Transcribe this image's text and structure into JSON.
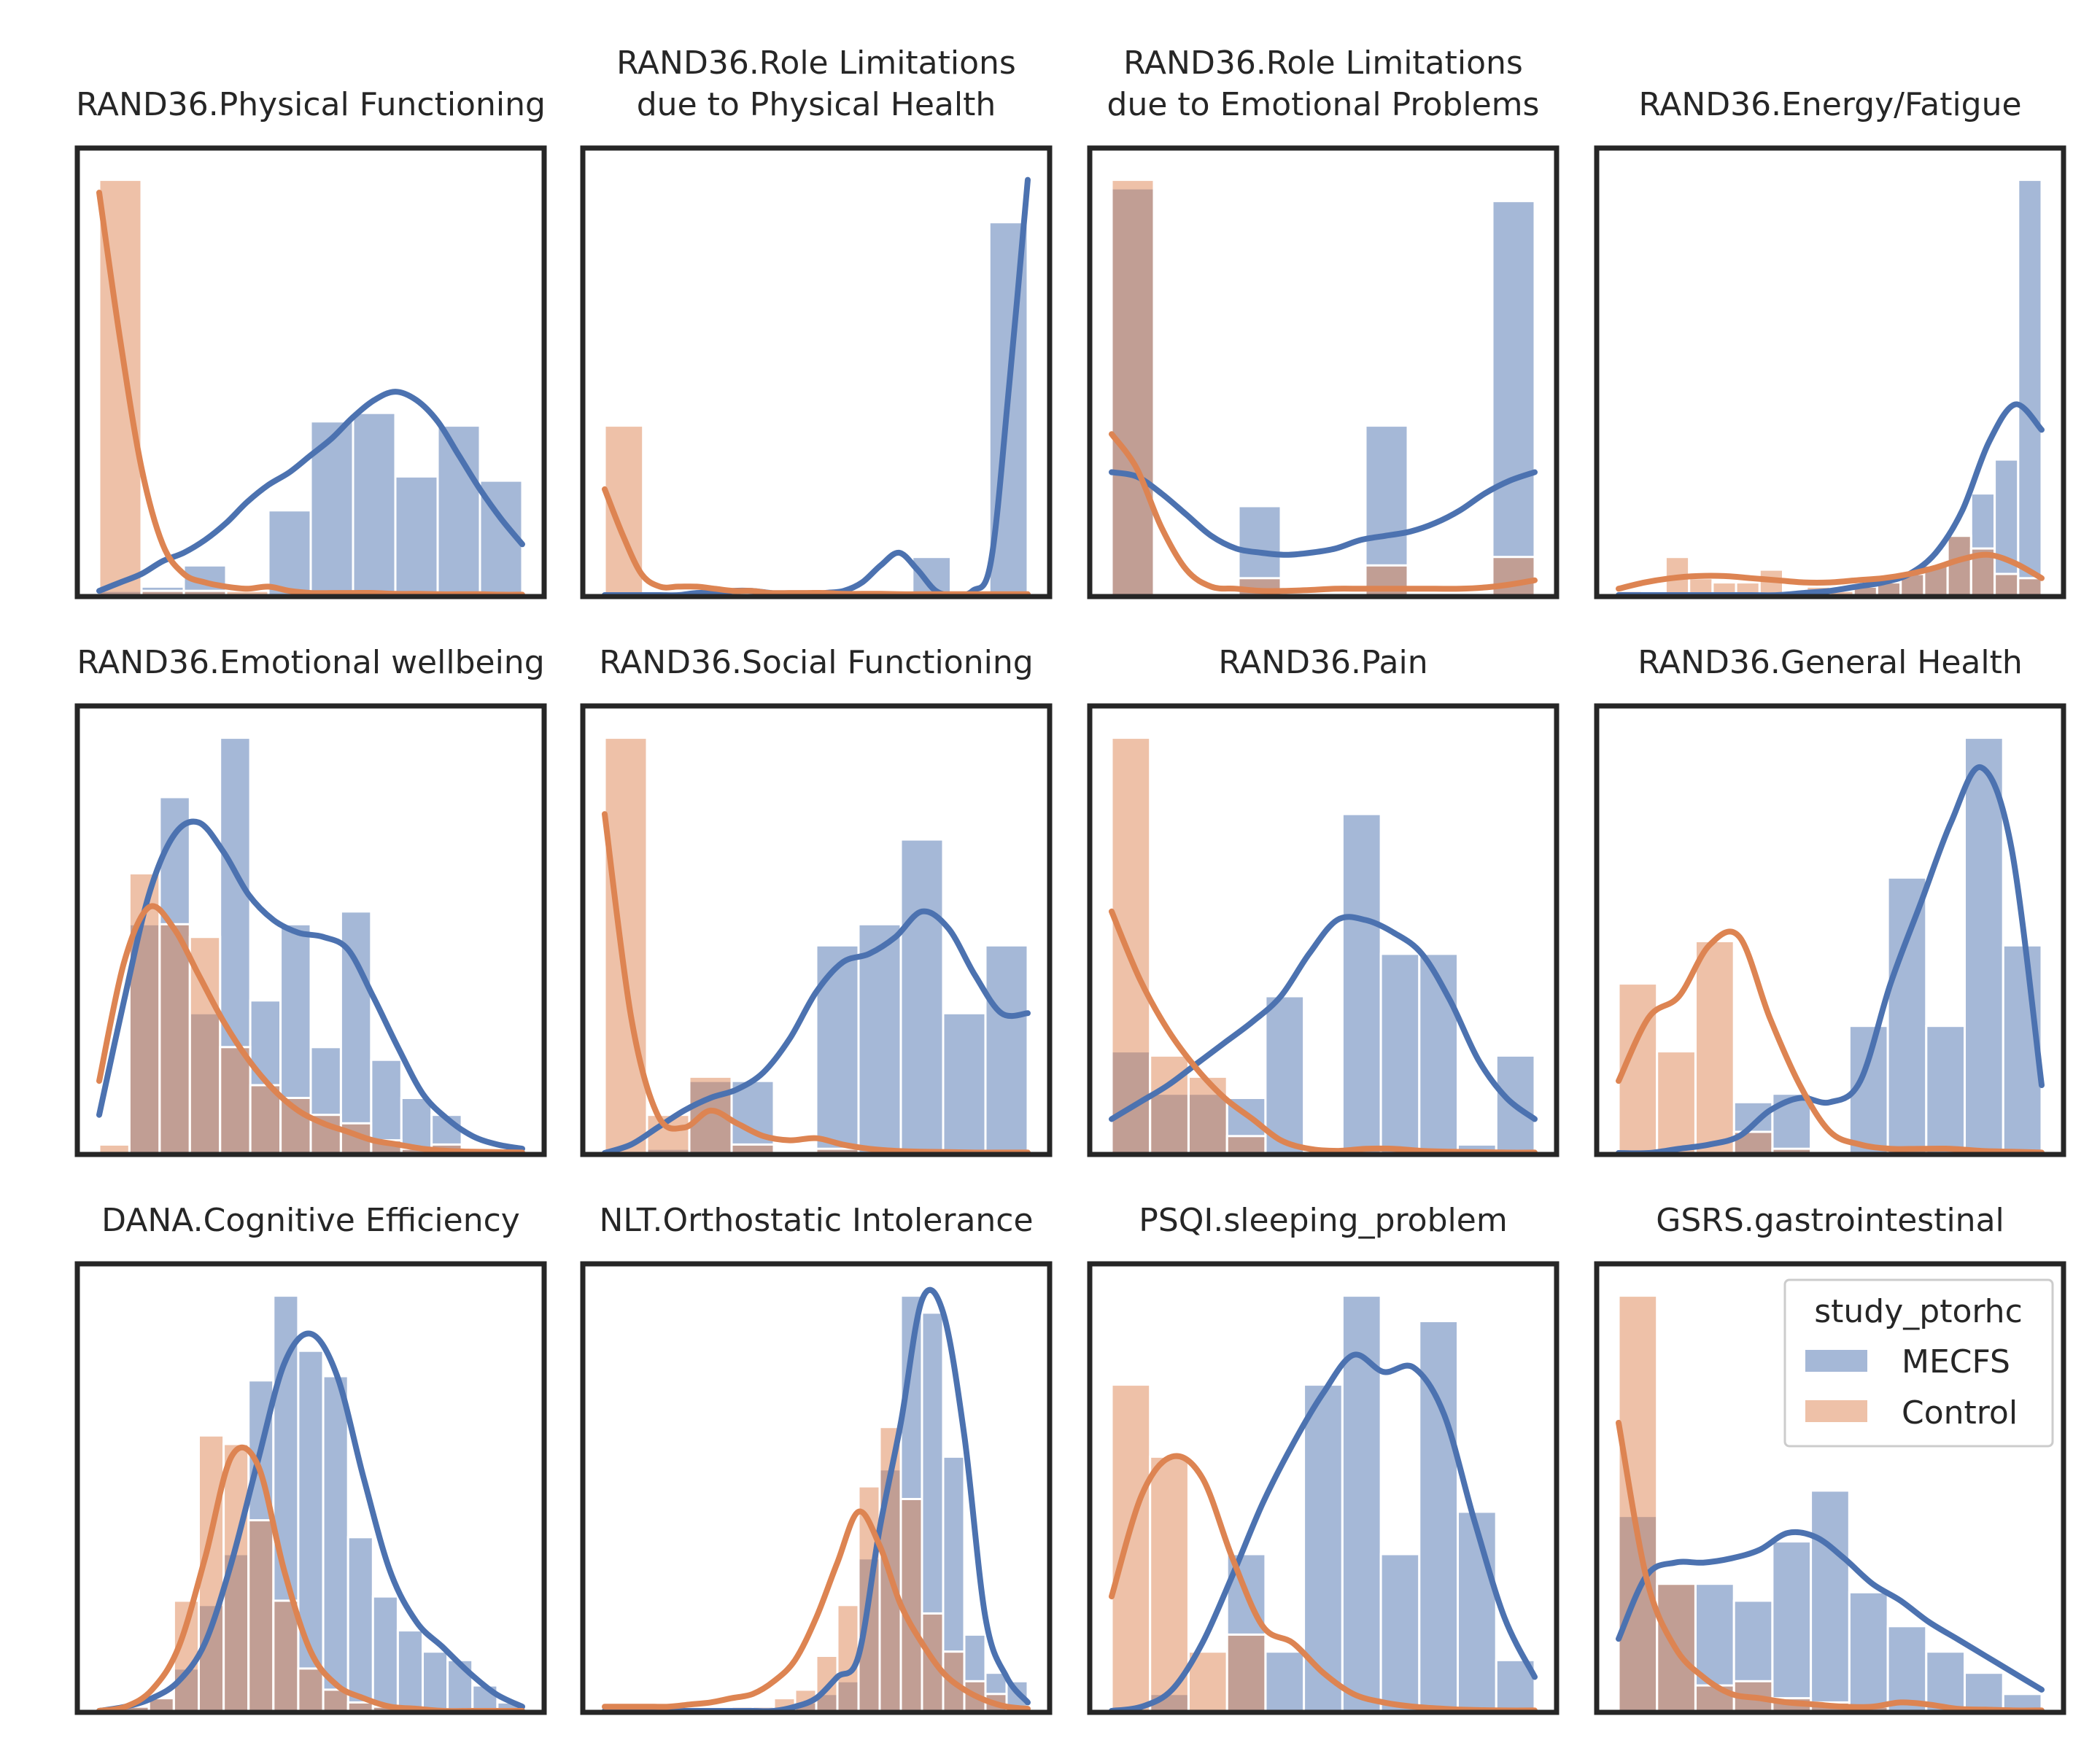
{
  "figure": {
    "legend": {
      "title": "study_ptorhc",
      "placement": "top-right of last panel",
      "entries": [
        {
          "label": "MECFS",
          "color": "#4c72b0"
        },
        {
          "label": "Control",
          "color": "#dd8452"
        }
      ]
    }
  },
  "chart_data": [
    {
      "type": "bar",
      "title_lines": [
        "RAND36.Physical Functioning"
      ],
      "hist": {
        "MECFS": [
          0.01,
          0.02,
          0.07,
          0.0,
          0.2,
          0.41,
          0.43,
          0.28,
          0.4,
          0.27
        ],
        "Control": [
          0.98,
          0.01,
          0.01,
          0.01,
          0.0,
          0.0,
          0.0,
          0.0,
          0.0,
          0.0
        ]
      },
      "kde": {
        "MECFS": [
          0.01,
          0.03,
          0.05,
          0.08,
          0.1,
          0.13,
          0.17,
          0.22,
          0.26,
          0.29,
          0.33,
          0.37,
          0.42,
          0.46,
          0.48,
          0.46,
          0.41,
          0.33,
          0.25,
          0.18,
          0.12
        ],
        "Control": [
          0.95,
          0.6,
          0.3,
          0.12,
          0.05,
          0.03,
          0.02,
          0.015,
          0.02,
          0.01,
          0.005,
          0.005,
          0.005,
          0.005,
          0.003,
          0.003,
          0.002,
          0.002,
          0.002,
          0.001,
          0.001
        ]
      }
    },
    {
      "type": "bar",
      "title_lines": [
        "RAND36.Role Limitations",
        "due to Physical Health"
      ],
      "hist": {
        "MECFS": [
          0.0,
          0.0,
          0.0,
          0.0,
          0.0,
          0.0,
          0.0,
          0.0,
          0.09,
          0.0,
          0.88
        ],
        "Control": [
          0.4,
          0.0,
          0.01,
          0.0,
          0.0,
          0.0,
          0.0,
          0.0,
          0.0,
          0.0,
          0.0
        ]
      },
      "kde": {
        "MECFS": [
          0.0,
          0.0,
          0.0,
          0.0,
          0.0,
          0.005,
          0.005,
          0.01,
          0.01,
          0.005,
          0.0,
          0.0,
          0.005,
          0.01,
          0.03,
          0.07,
          0.1,
          0.06,
          0.01,
          0.0,
          0.01,
          0.08,
          0.5,
          0.98
        ],
        "Control": [
          0.25,
          0.14,
          0.05,
          0.02,
          0.02,
          0.02,
          0.015,
          0.01,
          0.01,
          0.005,
          0.005,
          0.005,
          0.005,
          0.003,
          0.003,
          0.003,
          0.002,
          0.002,
          0.002,
          0.002,
          0.002,
          0.002,
          0.002,
          0.002
        ]
      }
    },
    {
      "type": "bar",
      "title_lines": [
        "RAND36.Role Limitations",
        "due to Emotional Problems"
      ],
      "hist": {
        "MECFS": [
          0.96,
          0.0,
          0.0,
          0.21,
          0.0,
          0.0,
          0.4,
          0.0,
          0.0,
          0.93
        ],
        "Control": [
          0.98,
          0.0,
          0.0,
          0.04,
          0.0,
          0.0,
          0.07,
          0.0,
          0.0,
          0.09
        ]
      },
      "kde": {
        "MECFS": [
          0.29,
          0.28,
          0.24,
          0.19,
          0.14,
          0.11,
          0.1,
          0.095,
          0.1,
          0.11,
          0.13,
          0.14,
          0.15,
          0.17,
          0.2,
          0.24,
          0.27,
          0.29
        ],
        "Control": [
          0.38,
          0.3,
          0.16,
          0.06,
          0.02,
          0.015,
          0.01,
          0.01,
          0.012,
          0.015,
          0.015,
          0.015,
          0.015,
          0.015,
          0.015,
          0.018,
          0.025,
          0.035
        ]
      }
    },
    {
      "type": "bar",
      "title_lines": [
        "RAND36.Energy/Fatigue"
      ],
      "hist": {
        "MECFS": [
          0.0,
          0.0,
          0.0,
          0.0,
          0.0,
          0.0,
          0.0,
          0.0,
          0.0,
          0.0,
          0.02,
          0.04,
          0.05,
          0.07,
          0.14,
          0.24,
          0.32,
          0.98
        ],
        "Control": [
          0.01,
          0.0,
          0.09,
          0.04,
          0.03,
          0.03,
          0.06,
          0.01,
          0.02,
          0.01,
          0.02,
          0.03,
          0.05,
          0.07,
          0.14,
          0.11,
          0.05,
          0.04
        ]
      },
      "kde": {
        "MECFS": [
          0.0,
          0.0,
          0.0,
          0.0,
          0.0,
          0.0,
          0.0,
          0.005,
          0.01,
          0.02,
          0.03,
          0.05,
          0.1,
          0.2,
          0.36,
          0.45,
          0.39
        ],
        "Control": [
          0.015,
          0.03,
          0.04,
          0.045,
          0.045,
          0.04,
          0.035,
          0.03,
          0.03,
          0.035,
          0.04,
          0.05,
          0.065,
          0.085,
          0.095,
          0.075,
          0.04
        ]
      }
    },
    {
      "type": "bar",
      "title_lines": [
        "RAND36.Emotional wellbeing"
      ],
      "hist": {
        "MECFS": [
          0.0,
          0.54,
          0.84,
          0.33,
          0.98,
          0.36,
          0.54,
          0.25,
          0.57,
          0.22,
          0.13,
          0.09,
          0.01,
          0.01
        ],
        "Control": [
          0.02,
          0.66,
          0.54,
          0.51,
          0.25,
          0.16,
          0.13,
          0.09,
          0.07,
          0.03,
          0.01,
          0.02,
          0.01,
          0.0
        ]
      },
      "kde": {
        "MECFS": [
          0.09,
          0.36,
          0.61,
          0.75,
          0.78,
          0.71,
          0.61,
          0.55,
          0.52,
          0.51,
          0.48,
          0.37,
          0.25,
          0.14,
          0.08,
          0.04,
          0.02,
          0.01
        ],
        "Control": [
          0.17,
          0.45,
          0.58,
          0.53,
          0.42,
          0.31,
          0.22,
          0.15,
          0.1,
          0.07,
          0.05,
          0.03,
          0.02,
          0.01,
          0.005,
          0.003,
          0.002,
          0.001
        ]
      }
    },
    {
      "type": "bar",
      "title_lines": [
        "RAND36.Social Functioning"
      ],
      "hist": {
        "MECFS": [
          0.0,
          0.01,
          0.17,
          0.17,
          0.0,
          0.49,
          0.54,
          0.74,
          0.33,
          0.49
        ],
        "Control": [
          0.98,
          0.09,
          0.18,
          0.02,
          0.0,
          0.01,
          0.0,
          0.0,
          0.0,
          0.0
        ]
      },
      "kde": {
        "MECFS": [
          0.0,
          0.02,
          0.06,
          0.1,
          0.13,
          0.15,
          0.19,
          0.27,
          0.38,
          0.45,
          0.47,
          0.51,
          0.57,
          0.53,
          0.42,
          0.33,
          0.33
        ],
        "Control": [
          0.8,
          0.32,
          0.09,
          0.06,
          0.1,
          0.07,
          0.04,
          0.03,
          0.035,
          0.02,
          0.01,
          0.005,
          0.003,
          0.002,
          0.001,
          0.001,
          0.001
        ]
      }
    },
    {
      "type": "bar",
      "title_lines": [
        "RAND36.Pain"
      ],
      "hist": {
        "MECFS": [
          0.24,
          0.14,
          0.14,
          0.13,
          0.37,
          0.0,
          0.8,
          0.47,
          0.47,
          0.02,
          0.23
        ],
        "Control": [
          0.98,
          0.23,
          0.18,
          0.04,
          0.0,
          0.0,
          0.0,
          0.0,
          0.0,
          0.0,
          0.0
        ]
      },
      "kde": {
        "MECFS": [
          0.08,
          0.12,
          0.16,
          0.21,
          0.26,
          0.31,
          0.37,
          0.47,
          0.55,
          0.55,
          0.52,
          0.47,
          0.36,
          0.22,
          0.13,
          0.08
        ],
        "Control": [
          0.57,
          0.41,
          0.29,
          0.2,
          0.13,
          0.08,
          0.03,
          0.01,
          0.005,
          0.01,
          0.01,
          0.005,
          0.003,
          0.002,
          0.001,
          0.001
        ]
      }
    },
    {
      "type": "bar",
      "title_lines": [
        "RAND36.General Health"
      ],
      "hist": {
        "MECFS": [
          0.0,
          0.0,
          0.0,
          0.12,
          0.14,
          0.0,
          0.3,
          0.65,
          0.3,
          0.98,
          0.49
        ],
        "Control": [
          0.4,
          0.24,
          0.5,
          0.05,
          0.01,
          0.0,
          0.0,
          0.0,
          0.0,
          0.0,
          0.0
        ]
      },
      "kde": {
        "MECFS": [
          0.0,
          0.0,
          0.01,
          0.02,
          0.04,
          0.1,
          0.13,
          0.12,
          0.17,
          0.4,
          0.59,
          0.78,
          0.91,
          0.72,
          0.16
        ],
        "Control": [
          0.17,
          0.32,
          0.37,
          0.49,
          0.51,
          0.32,
          0.16,
          0.05,
          0.02,
          0.01,
          0.01,
          0.01,
          0.005,
          0.003,
          0.001
        ]
      }
    },
    {
      "type": "bar",
      "title_lines": [
        "DANA.Cognitive Efficiency"
      ],
      "hist": {
        "MECFS": [
          0.0,
          0.01,
          0.03,
          0.1,
          0.25,
          0.37,
          0.78,
          0.98,
          0.85,
          0.79,
          0.41,
          0.27,
          0.19,
          0.14,
          0.12,
          0.06,
          0.02
        ],
        "Control": [
          0.0,
          0.01,
          0.03,
          0.26,
          0.65,
          0.63,
          0.45,
          0.26,
          0.1,
          0.05,
          0.02,
          0.01,
          0.0,
          0.0,
          0.0,
          0.0,
          0.0
        ]
      },
      "kde": {
        "MECFS": [
          0.0,
          0.01,
          0.03,
          0.07,
          0.16,
          0.35,
          0.59,
          0.82,
          0.89,
          0.79,
          0.55,
          0.33,
          0.21,
          0.15,
          0.09,
          0.04,
          0.01
        ],
        "Control": [
          0.0,
          0.01,
          0.05,
          0.15,
          0.36,
          0.6,
          0.58,
          0.33,
          0.14,
          0.06,
          0.03,
          0.01,
          0.005,
          0.0,
          0.0,
          0.0,
          0.0
        ]
      }
    },
    {
      "type": "bar",
      "title_lines": [
        "NLT.Orthostatic Intolerance"
      ],
      "hist": {
        "MECFS": [
          0.0,
          0.0,
          0.0,
          0.0,
          0.0,
          0.0,
          0.0,
          0.0,
          0.0,
          0.02,
          0.04,
          0.07,
          0.36,
          0.57,
          0.98,
          0.94,
          0.6,
          0.18,
          0.09,
          0.07
        ],
        "Control": [
          0.0,
          0.0,
          0.0,
          0.0,
          0.0,
          0.0,
          0.01,
          0.01,
          0.03,
          0.05,
          0.13,
          0.25,
          0.53,
          0.67,
          0.5,
          0.23,
          0.14,
          0.07,
          0.04,
          0.01
        ]
      },
      "kde": {
        "MECFS": [
          0.0,
          0.0,
          0.0,
          0.0,
          0.0,
          0.0,
          0.0,
          0.0,
          0.0,
          0.01,
          0.03,
          0.08,
          0.13,
          0.43,
          0.68,
          0.97,
          0.94,
          0.65,
          0.22,
          0.08,
          0.02
        ],
        "Control": [
          0.01,
          0.01,
          0.01,
          0.01,
          0.015,
          0.02,
          0.03,
          0.04,
          0.07,
          0.12,
          0.22,
          0.35,
          0.47,
          0.39,
          0.25,
          0.16,
          0.09,
          0.05,
          0.025,
          0.01,
          0.005
        ]
      }
    },
    {
      "type": "bar",
      "title_lines": [
        "PSQI.sleeping_problem"
      ],
      "hist": {
        "MECFS": [
          0.0,
          0.04,
          0.0,
          0.37,
          0.14,
          0.77,
          0.98,
          0.37,
          0.92,
          0.47,
          0.12
        ],
        "Control": [
          0.77,
          0.6,
          0.14,
          0.18,
          0.0,
          0.0,
          0.0,
          0.0,
          0.0,
          0.0,
          0.0
        ]
      },
      "kde": {
        "MECFS": [
          0.0,
          0.01,
          0.05,
          0.16,
          0.32,
          0.49,
          0.63,
          0.75,
          0.84,
          0.8,
          0.81,
          0.7,
          0.45,
          0.22,
          0.08
        ],
        "Control": [
          0.27,
          0.51,
          0.6,
          0.55,
          0.36,
          0.2,
          0.16,
          0.09,
          0.04,
          0.02,
          0.01,
          0.005,
          0.002,
          0.001,
          0.001
        ]
      }
    },
    {
      "type": "bar",
      "title_lines": [
        "GSRS.gastrointestinal"
      ],
      "hist": {
        "MECFS": [
          0.46,
          0.3,
          0.3,
          0.26,
          0.4,
          0.52,
          0.28,
          0.2,
          0.14,
          0.09,
          0.04
        ],
        "Control": [
          0.98,
          0.3,
          0.06,
          0.07,
          0.03,
          0.02,
          0.01,
          0.0,
          0.0,
          0.0,
          0.0
        ]
      },
      "kde": {
        "MECFS": [
          0.17,
          0.32,
          0.35,
          0.35,
          0.36,
          0.38,
          0.42,
          0.41,
          0.36,
          0.3,
          0.26,
          0.21,
          0.17,
          0.13,
          0.09,
          0.05
        ],
        "Control": [
          0.68,
          0.31,
          0.15,
          0.08,
          0.04,
          0.03,
          0.02,
          0.015,
          0.01,
          0.01,
          0.02,
          0.015,
          0.005,
          0.003,
          0.001,
          0.001
        ]
      }
    }
  ]
}
